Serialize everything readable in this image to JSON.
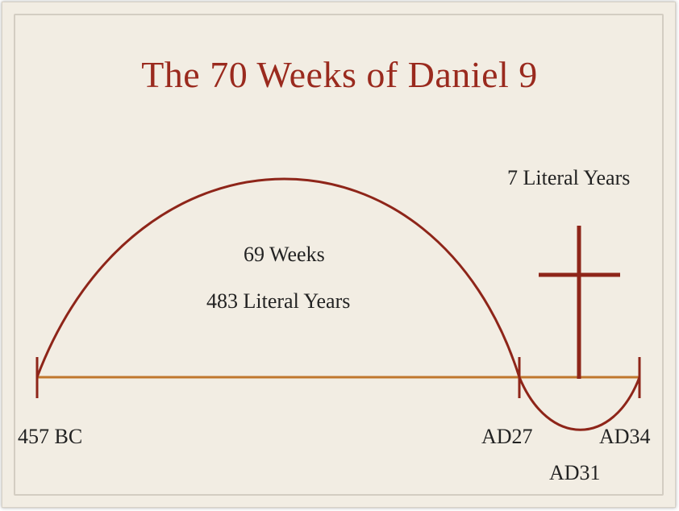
{
  "title": "The 70 Weeks of Daniel 9",
  "labels": {
    "seventy_weeks_final": "7 Literal Years",
    "sixty_nine_weeks": "69 Weeks",
    "four_eighty_three": "483 Literal Years",
    "start": "457 BC",
    "ad27": "AD27",
    "ad34": "AD34",
    "ad31": "AD31"
  },
  "colors": {
    "title": "#9a2a1e",
    "arc": "#8e2519",
    "baseline": "#c0772e",
    "background": "#f2ede3"
  }
}
